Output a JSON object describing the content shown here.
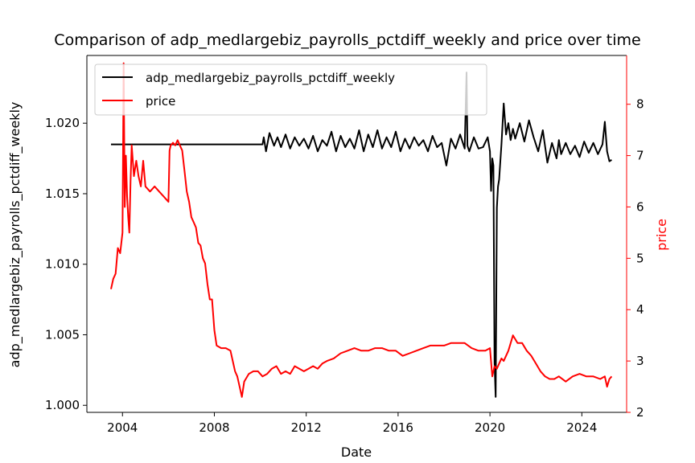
{
  "chart_data": {
    "type": "line",
    "title": "Comparison of adp_medlargebiz_payrolls_pctdiff_weekly and price over time",
    "xlabel": "Date",
    "ylabel_left": "adp_medlargebiz_payrolls_pctdiff_weekly",
    "ylabel_right": "price",
    "xlim": [
      2002.45,
      2025.95
    ],
    "ylim_left": [
      0.9995,
      1.0248
    ],
    "ylim_right": [
      2.0,
      8.95
    ],
    "x_ticks": [
      2004,
      2008,
      2012,
      2016,
      2020,
      2024
    ],
    "x_tick_labels": [
      "2004",
      "2008",
      "2012",
      "2016",
      "2020",
      "2024"
    ],
    "y_left_ticks": [
      1.0,
      1.005,
      1.01,
      1.015,
      1.02
    ],
    "y_left_tick_labels": [
      "1.000",
      "1.005",
      "1.010",
      "1.015",
      "1.020"
    ],
    "y_right_ticks": [
      2,
      3,
      4,
      5,
      6,
      7,
      8
    ],
    "y_right_tick_labels": [
      "2",
      "3",
      "4",
      "5",
      "6",
      "7",
      "8"
    ],
    "grid": false,
    "legend_position": "upper-left",
    "colors": {
      "series1": "#000000",
      "series2": "#ff0000"
    },
    "series": [
      {
        "name": "adp_medlargebiz_payrolls_pctdiff_weekly",
        "axis": "left",
        "color": "#000000",
        "x": [
          2003.5,
          2010.1,
          2010.15,
          2010.25,
          2010.4,
          2010.6,
          2010.75,
          2010.9,
          2011.1,
          2011.3,
          2011.5,
          2011.7,
          2011.9,
          2012.1,
          2012.3,
          2012.5,
          2012.7,
          2012.9,
          2013.1,
          2013.3,
          2013.5,
          2013.7,
          2013.9,
          2014.1,
          2014.3,
          2014.5,
          2014.7,
          2014.9,
          2015.1,
          2015.3,
          2015.5,
          2015.7,
          2015.9,
          2016.1,
          2016.3,
          2016.5,
          2016.7,
          2016.9,
          2017.1,
          2017.3,
          2017.5,
          2017.7,
          2017.9,
          2018.1,
          2018.3,
          2018.5,
          2018.7,
          2018.9,
          2018.98,
          2019.02,
          2019.1,
          2019.3,
          2019.5,
          2019.7,
          2019.9,
          2020.0,
          2020.05,
          2020.1,
          2020.15,
          2020.2,
          2020.25,
          2020.3,
          2020.35,
          2020.4,
          2020.5,
          2020.6,
          2020.7,
          2020.8,
          2020.9,
          2021.0,
          2021.1,
          2021.3,
          2021.5,
          2021.7,
          2021.9,
          2022.1,
          2022.3,
          2022.5,
          2022.7,
          2022.9,
          2023.0,
          2023.1,
          2023.3,
          2023.5,
          2023.7,
          2023.9,
          2024.1,
          2024.3,
          2024.5,
          2024.7,
          2024.9,
          2025.0,
          2025.1,
          2025.2,
          2025.3
        ],
        "y": [
          1.0185,
          1.0185,
          1.019,
          1.018,
          1.0193,
          1.0184,
          1.019,
          1.0183,
          1.0192,
          1.0182,
          1.019,
          1.0184,
          1.0189,
          1.0182,
          1.0191,
          1.018,
          1.0188,
          1.0184,
          1.0194,
          1.018,
          1.0191,
          1.0183,
          1.0189,
          1.0182,
          1.0195,
          1.018,
          1.0192,
          1.0183,
          1.0195,
          1.0182,
          1.019,
          1.0183,
          1.0194,
          1.018,
          1.0189,
          1.0182,
          1.019,
          1.0184,
          1.0188,
          1.018,
          1.0191,
          1.0183,
          1.0186,
          1.017,
          1.0189,
          1.0182,
          1.0192,
          1.0182,
          1.0236,
          1.0184,
          1.018,
          1.019,
          1.0182,
          1.0183,
          1.019,
          1.018,
          1.0152,
          1.0175,
          1.017,
          1.003,
          1.0006,
          1.014,
          1.0155,
          1.016,
          1.0185,
          1.0214,
          1.0192,
          1.02,
          1.0188,
          1.0196,
          1.0189,
          1.02,
          1.0187,
          1.0202,
          1.019,
          1.018,
          1.0195,
          1.0172,
          1.0186,
          1.0175,
          1.0188,
          1.0178,
          1.0186,
          1.0178,
          1.0184,
          1.0176,
          1.0187,
          1.0179,
          1.0186,
          1.0178,
          1.0185,
          1.0201,
          1.018,
          1.0173,
          1.0174
        ]
      },
      {
        "name": "price",
        "axis": "right",
        "color": "#ff0000",
        "x": [
          2003.5,
          2003.6,
          2003.7,
          2003.8,
          2003.9,
          2004.0,
          2004.05,
          2004.1,
          2004.15,
          2004.2,
          2004.25,
          2004.3,
          2004.35,
          2004.4,
          2004.5,
          2004.6,
          2004.7,
          2004.8,
          2004.9,
          2005.0,
          2005.2,
          2005.4,
          2005.6,
          2005.8,
          2006.0,
          2006.05,
          2006.1,
          2006.2,
          2006.3,
          2006.4,
          2006.5,
          2006.6,
          2006.7,
          2006.8,
          2006.9,
          2007.0,
          2007.1,
          2007.2,
          2007.3,
          2007.4,
          2007.5,
          2007.6,
          2007.7,
          2007.8,
          2007.9,
          2008.0,
          2008.1,
          2008.3,
          2008.5,
          2008.7,
          2008.9,
          2009.0,
          2009.1,
          2009.2,
          2009.3,
          2009.5,
          2009.7,
          2009.9,
          2010.1,
          2010.3,
          2010.5,
          2010.7,
          2010.9,
          2011.1,
          2011.3,
          2011.5,
          2011.7,
          2011.9,
          2012.1,
          2012.3,
          2012.5,
          2012.7,
          2012.9,
          2013.2,
          2013.5,
          2013.8,
          2014.1,
          2014.4,
          2014.7,
          2015.0,
          2015.3,
          2015.6,
          2015.9,
          2016.2,
          2016.5,
          2016.8,
          2017.1,
          2017.4,
          2017.7,
          2018.0,
          2018.3,
          2018.6,
          2018.9,
          2019.2,
          2019.5,
          2019.8,
          2020.0,
          2020.1,
          2020.2,
          2020.3,
          2020.4,
          2020.5,
          2020.6,
          2020.8,
          2021.0,
          2021.2,
          2021.4,
          2021.6,
          2021.8,
          2022.0,
          2022.2,
          2022.4,
          2022.6,
          2022.8,
          2023.0,
          2023.3,
          2023.6,
          2023.9,
          2024.2,
          2024.5,
          2024.8,
          2025.0,
          2025.1,
          2025.2,
          2025.3
        ],
        "y": [
          4.4,
          4.6,
          4.7,
          5.2,
          5.1,
          5.5,
          8.8,
          6.0,
          7.0,
          6.2,
          5.8,
          5.5,
          6.5,
          7.2,
          6.6,
          6.9,
          6.6,
          6.4,
          6.9,
          6.4,
          6.3,
          6.4,
          6.3,
          6.2,
          6.1,
          7.1,
          7.2,
          7.25,
          7.2,
          7.3,
          7.2,
          7.1,
          6.7,
          6.3,
          6.1,
          5.8,
          5.7,
          5.6,
          5.3,
          5.25,
          5.0,
          4.9,
          4.5,
          4.2,
          4.2,
          3.6,
          3.3,
          3.25,
          3.25,
          3.2,
          2.8,
          2.7,
          2.5,
          2.3,
          2.6,
          2.75,
          2.8,
          2.8,
          2.7,
          2.75,
          2.85,
          2.9,
          2.75,
          2.8,
          2.75,
          2.9,
          2.85,
          2.8,
          2.85,
          2.9,
          2.85,
          2.95,
          3.0,
          3.05,
          3.15,
          3.2,
          3.25,
          3.2,
          3.2,
          3.25,
          3.25,
          3.2,
          3.2,
          3.1,
          3.15,
          3.2,
          3.25,
          3.3,
          3.3,
          3.3,
          3.35,
          3.35,
          3.35,
          3.25,
          3.2,
          3.2,
          3.25,
          2.7,
          2.9,
          2.85,
          2.95,
          3.05,
          3.0,
          3.2,
          3.5,
          3.35,
          3.35,
          3.2,
          3.1,
          2.95,
          2.8,
          2.7,
          2.65,
          2.65,
          2.7,
          2.6,
          2.7,
          2.75,
          2.7,
          2.7,
          2.65,
          2.7,
          2.5,
          2.65,
          2.7
        ]
      }
    ]
  }
}
